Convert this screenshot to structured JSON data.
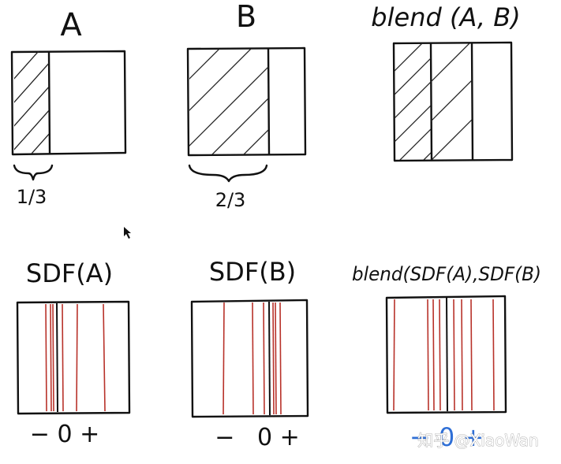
{
  "titles": {
    "a": "A",
    "b": "B",
    "blend": "blend (A, B)",
    "sdf_a": "SDF(A)",
    "sdf_b": "SDF(B)",
    "blend_sdf": "blend(SDF(A),SDF(B)"
  },
  "fractions": {
    "a": "1/3",
    "b": "2/3"
  },
  "sign_labels": {
    "a": "− 0 +",
    "b": "−   0 +",
    "blend": "− 0 +"
  },
  "watermark": "知乎 @XiaoWan",
  "colors": {
    "ink": "#111111",
    "sdf_lines": "#b8322a",
    "sign_blend": "#2f6fd6"
  }
}
